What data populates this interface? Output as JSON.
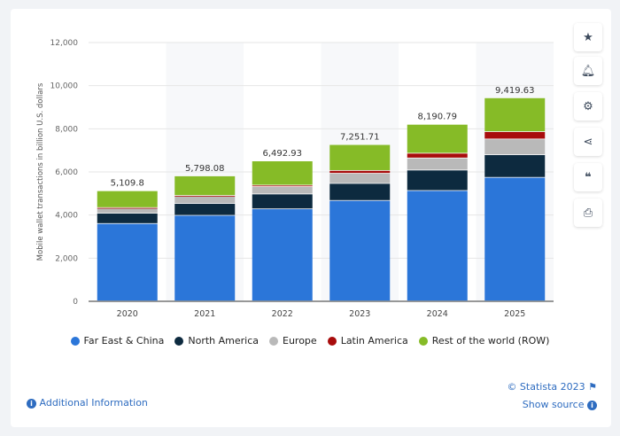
{
  "chart_data": {
    "type": "bar",
    "stacked": true,
    "categories": [
      "2020",
      "2021",
      "2022",
      "2023",
      "2024",
      "2025"
    ],
    "ylabel": "Mobile wallet transactions in billion U.S. dollars",
    "ylim": [
      0,
      12000
    ],
    "yticks": [
      "0",
      "2,000",
      "4,000",
      "6,000",
      "8,000",
      "10,000",
      "12,000"
    ],
    "ytick_values": [
      0,
      2000,
      4000,
      6000,
      8000,
      10000,
      12000
    ],
    "grid": true,
    "legend": "bottom",
    "totals": [
      "5,109.8",
      "5,798.08",
      "6,492.93",
      "7,251.71",
      "8,190.79",
      "9,419.63"
    ],
    "series": [
      {
        "name": "Far East & China",
        "color": "#2b76d9",
        "values": [
          3590,
          3970,
          4270,
          4660,
          5120,
          5730
        ]
      },
      {
        "name": "North America",
        "color": "#0d2a3f",
        "values": [
          480,
          550,
          690,
          790,
          950,
          1050
        ]
      },
      {
        "name": "Europe",
        "color": "#b9b9b9",
        "values": [
          230,
          330,
          340,
          470,
          560,
          730
        ]
      },
      {
        "name": "Latin America",
        "color": "#a80c0c",
        "values": [
          30,
          40,
          70,
          130,
          220,
          340
        ]
      },
      {
        "name": "Rest of the world (ROW)",
        "color": "#86bb27",
        "values": [
          780,
          908,
          1123,
          1202,
          1341,
          1570
        ]
      }
    ]
  },
  "sidebar": {
    "icons": [
      "star-icon",
      "bell-icon",
      "gear-icon",
      "share-icon",
      "quote-icon",
      "print-icon"
    ]
  },
  "footer": {
    "additional": "Additional Information",
    "copyright": "© Statista 2023",
    "source": "Show source"
  }
}
